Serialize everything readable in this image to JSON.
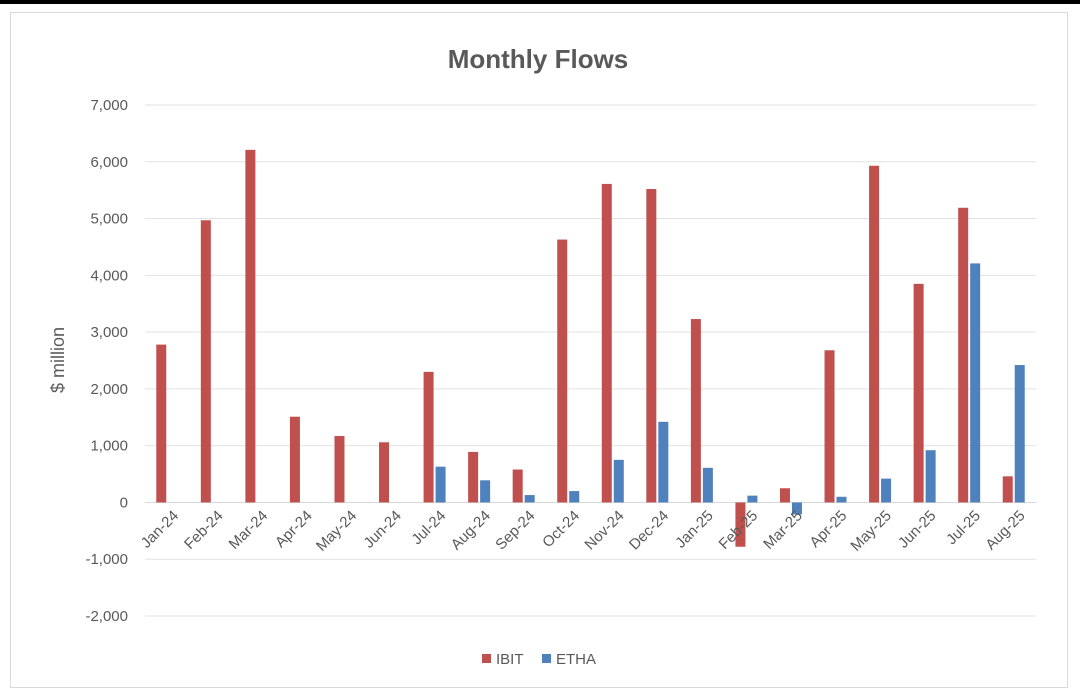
{
  "chart_data": {
    "type": "bar",
    "title": "Monthly Flows",
    "xlabel": "",
    "ylabel": "$ million",
    "ylim": [
      -2000,
      7000
    ],
    "yticks": [
      -2000,
      -1000,
      0,
      1000,
      2000,
      3000,
      4000,
      5000,
      6000,
      7000
    ],
    "ytick_labels": [
      "-2,000",
      "-1,000",
      "0",
      "1,000",
      "2,000",
      "3,000",
      "4,000",
      "5,000",
      "6,000",
      "7,000"
    ],
    "grid": true,
    "legend_position": "bottom",
    "categories": [
      "Jan-24",
      "Feb-24",
      "Mar-24",
      "Apr-24",
      "May-24",
      "Jun-24",
      "Jul-24",
      "Aug-24",
      "Sep-24",
      "Oct-24",
      "Nov-24",
      "Dec-24",
      "Jan-25",
      "Feb-25",
      "Mar-25",
      "Apr-25",
      "May-25",
      "Jun-25",
      "Jul-25",
      "Aug-25"
    ],
    "series": [
      {
        "name": "IBIT",
        "color": "#c0504d",
        "values": [
          2780,
          4970,
          6210,
          1510,
          1170,
          1060,
          2300,
          890,
          580,
          4630,
          5610,
          5520,
          3230,
          -780,
          250,
          2680,
          5930,
          3850,
          5190,
          460
        ]
      },
      {
        "name": "ETHA",
        "color": "#4f81bd",
        "values": [
          null,
          null,
          null,
          null,
          null,
          null,
          630,
          390,
          130,
          200,
          750,
          1420,
          610,
          120,
          -210,
          100,
          420,
          920,
          4210,
          2420
        ]
      }
    ]
  }
}
